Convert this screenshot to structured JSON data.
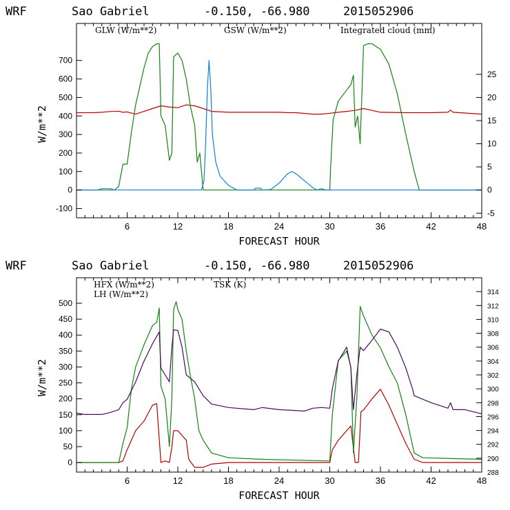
{
  "chart_data": [
    {
      "type": "line",
      "header": {
        "model": "WRF",
        "station": "Sao Gabriel",
        "coords": "-0.150, -66.980",
        "run": "2015052906"
      },
      "xlabel": "FORECAST HOUR",
      "ylabel": "W/m**2",
      "xlim": [
        0,
        48
      ],
      "ylim": [
        -150,
        900
      ],
      "y2lim": [
        -6,
        36
      ],
      "x_ticks": [
        6,
        12,
        18,
        24,
        30,
        36,
        42,
        48
      ],
      "y_ticks": [
        -100,
        0,
        100,
        200,
        300,
        400,
        500,
        600,
        700
      ],
      "y2_ticks": [
        -5,
        0,
        5,
        10,
        15,
        20,
        25
      ],
      "series": [
        {
          "name": "GLW (W/m**2)",
          "color": "#b40000",
          "axis": "left",
          "points": [
            [
              0,
              418
            ],
            [
              2,
              418
            ],
            [
              3,
              420
            ],
            [
              4,
              424
            ],
            [
              5,
              426
            ],
            [
              5.5,
              420
            ],
            [
              6,
              422
            ],
            [
              7,
              410
            ],
            [
              8,
              425
            ],
            [
              9,
              440
            ],
            [
              10,
              455
            ],
            [
              11,
              448
            ],
            [
              12,
              445
            ],
            [
              13,
              460
            ],
            [
              14,
              455
            ],
            [
              15,
              440
            ],
            [
              16,
              425
            ],
            [
              18,
              420
            ],
            [
              21,
              420
            ],
            [
              24,
              420
            ],
            [
              25,
              418
            ],
            [
              26,
              418
            ],
            [
              28,
              410
            ],
            [
              29,
              410
            ],
            [
              30,
              415
            ],
            [
              31,
              420
            ],
            [
              32,
              425
            ],
            [
              33,
              430
            ],
            [
              34,
              440
            ],
            [
              35,
              430
            ],
            [
              36,
              420
            ],
            [
              39,
              418
            ],
            [
              42,
              418
            ],
            [
              44,
              420
            ],
            [
              44.3,
              432
            ],
            [
              44.6,
              420
            ],
            [
              48,
              410
            ]
          ]
        },
        {
          "name": "GSW (W/m**2)",
          "color": "#138313",
          "axis": "left",
          "points": [
            [
              0,
              0
            ],
            [
              4.5,
              0
            ],
            [
              5,
              20
            ],
            [
              5.5,
              140
            ],
            [
              6,
              140
            ],
            [
              6.5,
              310
            ],
            [
              7,
              460
            ],
            [
              7.5,
              560
            ],
            [
              8,
              660
            ],
            [
              8.5,
              740
            ],
            [
              9,
              775
            ],
            [
              9.5,
              790
            ],
            [
              9.8,
              790
            ],
            [
              10,
              400
            ],
            [
              10.5,
              350
            ],
            [
              11,
              160
            ],
            [
              11.3,
              200
            ],
            [
              11.5,
              720
            ],
            [
              12,
              740
            ],
            [
              12.5,
              700
            ],
            [
              13,
              600
            ],
            [
              13.5,
              450
            ],
            [
              14,
              350
            ],
            [
              14.3,
              150
            ],
            [
              14.6,
              200
            ],
            [
              15,
              0
            ],
            [
              30,
              0
            ],
            [
              30.1,
              120
            ],
            [
              30.4,
              380
            ],
            [
              31,
              480
            ],
            [
              32,
              540
            ],
            [
              32.5,
              570
            ],
            [
              32.8,
              620
            ],
            [
              33,
              340
            ],
            [
              33.3,
              400
            ],
            [
              33.6,
              250
            ],
            [
              34,
              780
            ],
            [
              34.5,
              790
            ],
            [
              35,
              790
            ],
            [
              36,
              760
            ],
            [
              37,
              680
            ],
            [
              38,
              520
            ],
            [
              39,
              300
            ],
            [
              40,
              100
            ],
            [
              40.6,
              0
            ],
            [
              48,
              0
            ]
          ]
        },
        {
          "name": "Integrated cloud (mm)",
          "color": "#0f7fdc",
          "axis": "right",
          "points": [
            [
              0,
              0
            ],
            [
              2.5,
              0
            ],
            [
              3,
              0.3
            ],
            [
              4,
              0.3
            ],
            [
              4.5,
              0
            ],
            [
              14.8,
              0
            ],
            [
              15.1,
              2
            ],
            [
              15.3,
              10
            ],
            [
              15.5,
              22
            ],
            [
              15.7,
              28
            ],
            [
              15.9,
              22
            ],
            [
              16.1,
              12
            ],
            [
              16.5,
              6
            ],
            [
              17,
              3
            ],
            [
              18,
              1
            ],
            [
              19,
              0
            ],
            [
              21,
              0
            ],
            [
              21.2,
              0.4
            ],
            [
              21.8,
              0.4
            ],
            [
              22,
              0
            ],
            [
              23,
              0.1
            ],
            [
              24,
              1.5
            ],
            [
              25,
              3.5
            ],
            [
              25.5,
              4
            ],
            [
              26,
              3.5
            ],
            [
              27,
              2
            ],
            [
              28,
              0.5
            ],
            [
              28.5,
              0
            ],
            [
              29,
              0.3
            ],
            [
              29.5,
              0
            ],
            [
              48,
              0
            ]
          ]
        }
      ]
    },
    {
      "type": "line",
      "header": {
        "model": "WRF",
        "station": "Sao Gabriel",
        "coords": "-0.150, -66.980",
        "run": "2015052906"
      },
      "xlabel": "FORECAST HOUR",
      "ylabel": "W/m**2",
      "xlim": [
        0,
        48
      ],
      "ylim": [
        -30,
        580
      ],
      "y2lim": [
        288,
        316
      ],
      "x_ticks": [
        6,
        12,
        18,
        24,
        30,
        36,
        42,
        48
      ],
      "y_ticks": [
        0,
        50,
        100,
        150,
        200,
        250,
        300,
        350,
        400,
        450,
        500
      ],
      "y2_ticks": [
        288,
        290,
        292,
        294,
        296,
        298,
        300,
        302,
        304,
        306,
        308,
        310,
        312,
        314
      ],
      "series": [
        {
          "name": "HFX (W/m**2)",
          "color": "#b40000",
          "axis": "left",
          "points": [
            [
              0,
              0
            ],
            [
              5,
              0
            ],
            [
              5.5,
              5
            ],
            [
              6,
              40
            ],
            [
              7,
              100
            ],
            [
              8,
              130
            ],
            [
              9,
              180
            ],
            [
              9.5,
              185
            ],
            [
              10,
              0
            ],
            [
              10.5,
              5
            ],
            [
              11,
              0
            ],
            [
              11.3,
              50
            ],
            [
              11.5,
              100
            ],
            [
              12,
              100
            ],
            [
              13,
              70
            ],
            [
              13.3,
              10
            ],
            [
              14,
              -15
            ],
            [
              15,
              -15
            ],
            [
              16,
              -5
            ],
            [
              18,
              0
            ],
            [
              30,
              0
            ],
            [
              30.3,
              40
            ],
            [
              31,
              70
            ],
            [
              32,
              100
            ],
            [
              32.5,
              115
            ],
            [
              33,
              0
            ],
            [
              33.4,
              0
            ],
            [
              33.7,
              160
            ],
            [
              34,
              165
            ],
            [
              35,
              200
            ],
            [
              36,
              230
            ],
            [
              37,
              180
            ],
            [
              38,
              120
            ],
            [
              39,
              60
            ],
            [
              40,
              10
            ],
            [
              41,
              0
            ],
            [
              48,
              0
            ]
          ]
        },
        {
          "name": "LH  (W/m**2)",
          "color": "#138313",
          "axis": "left",
          "points": [
            [
              0,
              0
            ],
            [
              5,
              0
            ],
            [
              5.5,
              60
            ],
            [
              6,
              110
            ],
            [
              6.5,
              230
            ],
            [
              7,
              300
            ],
            [
              8,
              370
            ],
            [
              9,
              430
            ],
            [
              9.5,
              440
            ],
            [
              9.8,
              485
            ],
            [
              10,
              240
            ],
            [
              10.5,
              200
            ],
            [
              11,
              50
            ],
            [
              11.3,
              200
            ],
            [
              11.5,
              480
            ],
            [
              11.8,
              505
            ],
            [
              12,
              480
            ],
            [
              12.5,
              450
            ],
            [
              13,
              350
            ],
            [
              13.5,
              270
            ],
            [
              14,
              200
            ],
            [
              14.5,
              100
            ],
            [
              15,
              70
            ],
            [
              16,
              30
            ],
            [
              18,
              15
            ],
            [
              22,
              10
            ],
            [
              30,
              5
            ],
            [
              30.3,
              150
            ],
            [
              31,
              320
            ],
            [
              32,
              350
            ],
            [
              32.5,
              300
            ],
            [
              32.8,
              30
            ],
            [
              33.2,
              200
            ],
            [
              33.6,
              490
            ],
            [
              34,
              460
            ],
            [
              35,
              400
            ],
            [
              36,
              360
            ],
            [
              37,
              300
            ],
            [
              38,
              250
            ],
            [
              39,
              150
            ],
            [
              40,
              30
            ],
            [
              41,
              15
            ],
            [
              48,
              10
            ]
          ]
        },
        {
          "name": "TSK (K)",
          "color": "#4a0a5c",
          "axis": "right",
          "points": [
            [
              0,
              296.5
            ],
            [
              1,
              296.3
            ],
            [
              3,
              296.3
            ],
            [
              4,
              296.6
            ],
            [
              5,
              297
            ],
            [
              5.5,
              298
            ],
            [
              6,
              298.5
            ],
            [
              7,
              301
            ],
            [
              8,
              304
            ],
            [
              9,
              306.5
            ],
            [
              9.8,
              308.2
            ],
            [
              10,
              303
            ],
            [
              11,
              301
            ],
            [
              11.3,
              306
            ],
            [
              11.5,
              308.5
            ],
            [
              12,
              308.4
            ],
            [
              12.5,
              306
            ],
            [
              13,
              302
            ],
            [
              14,
              301
            ],
            [
              15,
              299
            ],
            [
              16,
              297.8
            ],
            [
              18,
              297.3
            ],
            [
              21,
              297
            ],
            [
              22,
              297.3
            ],
            [
              24,
              297
            ],
            [
              27,
              296.8
            ],
            [
              28,
              297.2
            ],
            [
              29,
              297.3
            ],
            [
              30,
              297.2
            ],
            [
              30.3,
              300
            ],
            [
              31,
              304
            ],
            [
              32,
              306
            ],
            [
              32.5,
              303
            ],
            [
              32.8,
              297
            ],
            [
              33.2,
              302
            ],
            [
              33.6,
              306
            ],
            [
              34,
              305.5
            ],
            [
              35,
              307
            ],
            [
              36,
              308.6
            ],
            [
              37,
              308.2
            ],
            [
              38,
              306
            ],
            [
              39,
              303
            ],
            [
              39.8,
              300
            ],
            [
              40,
              299
            ],
            [
              42,
              298
            ],
            [
              44,
              297.2
            ],
            [
              44.3,
              298
            ],
            [
              44.6,
              297
            ],
            [
              46,
              297
            ],
            [
              48,
              296.4
            ]
          ]
        }
      ]
    }
  ]
}
